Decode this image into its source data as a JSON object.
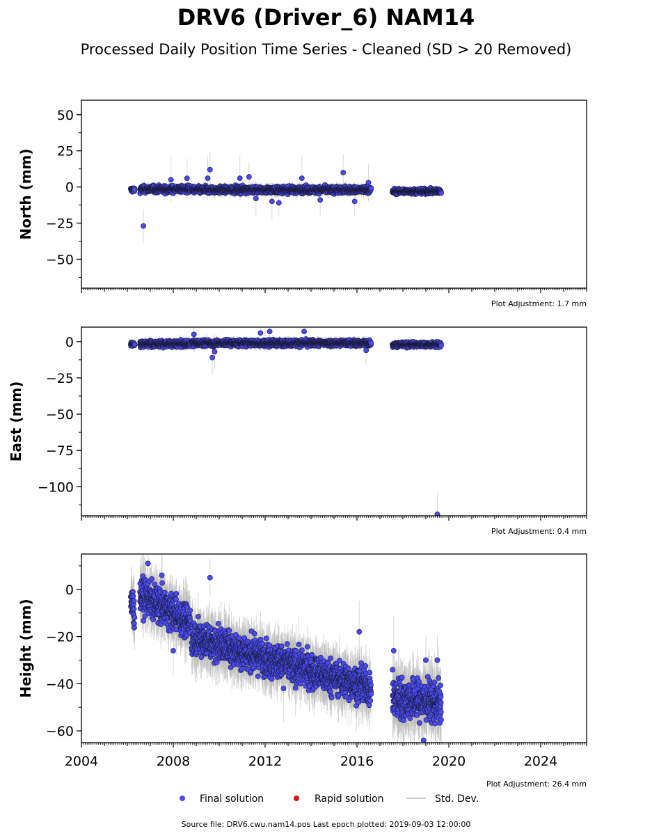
{
  "figure": {
    "title": "DRV6 (Driver_6) NAM14",
    "subtitle": "Processed Daily Position Time Series - Cleaned (SD > 20 Removed)",
    "source_note": "Source file: DRV6.cwu.nam14.pos  Last epoch plotted: 2019-09-03 12:00:00"
  },
  "legend": {
    "placement": "bottom-center",
    "items": [
      {
        "label": "Final solution",
        "color": "#4a4aef",
        "marker": "circle"
      },
      {
        "label": "Rapid solution",
        "color": "#e01010",
        "marker": "circle"
      },
      {
        "label": "Std. Dev.",
        "color": "#c8c8c8",
        "marker": "line"
      }
    ]
  },
  "colors": {
    "final": "#4a4aef",
    "final_edge": "#1a1a3a",
    "rapid": "#e01010",
    "stddev": "#b8b8b8",
    "axis": "#000000"
  },
  "chart_data": [
    {
      "type": "scatter",
      "name": "north",
      "ylabel": "North (mm)",
      "adjustment": "Plot Adjustment: 1.7 mm",
      "xlim": [
        2004.0,
        2026.0
      ],
      "ylim": [
        -70,
        60
      ],
      "yticks": [
        50,
        25,
        0,
        -25,
        -50
      ],
      "ytick_labels": [
        "50",
        "25",
        "0",
        "−25",
        "−50"
      ],
      "grid": false,
      "show_xtick_labels": false,
      "segments": [
        {
          "start": 2006.15,
          "end": 2006.32,
          "mean": -2.0,
          "sd": 1.2
        },
        {
          "start": 2006.55,
          "end": 2008.75,
          "mean": -1.5,
          "sd": 1.6
        },
        {
          "start": 2008.8,
          "end": 2016.62,
          "mean": -2.0,
          "sd": 1.6
        },
        {
          "start": 2017.55,
          "end": 2019.67,
          "mean": -3.0,
          "sd": 1.2
        }
      ],
      "outliers": [
        {
          "x": 2006.7,
          "y": -27
        },
        {
          "x": 2009.6,
          "y": 12
        },
        {
          "x": 2009.5,
          "y": 6
        },
        {
          "x": 2010.9,
          "y": 6
        },
        {
          "x": 2011.3,
          "y": 7
        },
        {
          "x": 2011.6,
          "y": -8
        },
        {
          "x": 2012.3,
          "y": -10
        },
        {
          "x": 2012.6,
          "y": -11
        },
        {
          "x": 2013.6,
          "y": 6
        },
        {
          "x": 2014.4,
          "y": -9
        },
        {
          "x": 2015.4,
          "y": 10
        },
        {
          "x": 2015.9,
          "y": -10
        },
        {
          "x": 2016.5,
          "y": 3
        },
        {
          "x": 2008.6,
          "y": 6
        },
        {
          "x": 2007.9,
          "y": 5
        }
      ]
    },
    {
      "type": "scatter",
      "name": "east",
      "ylabel": "East (mm)",
      "adjustment": "Plot Adjustment: 0.4 mm",
      "xlim": [
        2004.0,
        2026.0
      ],
      "ylim": [
        -120,
        10
      ],
      "yticks": [
        0,
        -25,
        -50,
        -75,
        -100
      ],
      "ytick_labels": [
        "0",
        "−25",
        "−50",
        "−75",
        "−100"
      ],
      "grid": false,
      "show_xtick_labels": false,
      "segments": [
        {
          "start": 2006.15,
          "end": 2006.32,
          "mean": -1.5,
          "sd": 1.0
        },
        {
          "start": 2006.55,
          "end": 2008.75,
          "mean": -1.5,
          "sd": 1.5
        },
        {
          "start": 2008.8,
          "end": 2016.62,
          "mean": -1.0,
          "sd": 1.5
        },
        {
          "start": 2017.55,
          "end": 2019.67,
          "mean": -2.0,
          "sd": 1.2
        }
      ],
      "outliers": [
        {
          "x": 2019.5,
          "y": -119
        },
        {
          "x": 2009.7,
          "y": -11
        },
        {
          "x": 2013.7,
          "y": 7
        },
        {
          "x": 2012.2,
          "y": 7
        },
        {
          "x": 2011.8,
          "y": 6
        },
        {
          "x": 2008.9,
          "y": 5
        },
        {
          "x": 2009.8,
          "y": -7
        },
        {
          "x": 2016.4,
          "y": -6
        }
      ]
    },
    {
      "type": "scatter",
      "name": "height",
      "ylabel": "Height (mm)",
      "adjustment": "Plot Adjustment: 26.4 mm",
      "xlim": [
        2004.0,
        2026.0
      ],
      "ylim": [
        -65,
        15
      ],
      "yticks": [
        0,
        -20,
        -40,
        -60
      ],
      "ytick_labels": [
        "0",
        "−20",
        "−40",
        "−60"
      ],
      "grid": false,
      "show_xtick_labels": true,
      "xticks": [
        2004,
        2008,
        2012,
        2016,
        2020,
        2024
      ],
      "xtick_labels": [
        "2004",
        "2008",
        "2012",
        "2016",
        "2020",
        "2024"
      ],
      "segments": [
        {
          "start": 2006.15,
          "end": 2006.32,
          "mean_start": -6,
          "mean_end": -8,
          "sd": 5
        },
        {
          "start": 2006.55,
          "end": 2008.75,
          "mean_start": -2,
          "mean_end": -14,
          "sd": 5
        },
        {
          "start": 2008.8,
          "end": 2016.62,
          "mean_start": -20,
          "mean_end": -42,
          "sd": 5
        },
        {
          "start": 2017.55,
          "end": 2019.67,
          "mean_start": -46,
          "mean_end": -48,
          "sd": 6
        }
      ],
      "outliers": [
        {
          "x": 2009.6,
          "y": 5
        },
        {
          "x": 2006.9,
          "y": 11
        },
        {
          "x": 2007.5,
          "y": 6
        },
        {
          "x": 2016.1,
          "y": -18
        },
        {
          "x": 2017.6,
          "y": -26
        },
        {
          "x": 2019.0,
          "y": -30
        },
        {
          "x": 2019.5,
          "y": -30
        },
        {
          "x": 2018.9,
          "y": -64
        },
        {
          "x": 2012.8,
          "y": -42
        },
        {
          "x": 2008.0,
          "y": -26
        }
      ]
    }
  ]
}
